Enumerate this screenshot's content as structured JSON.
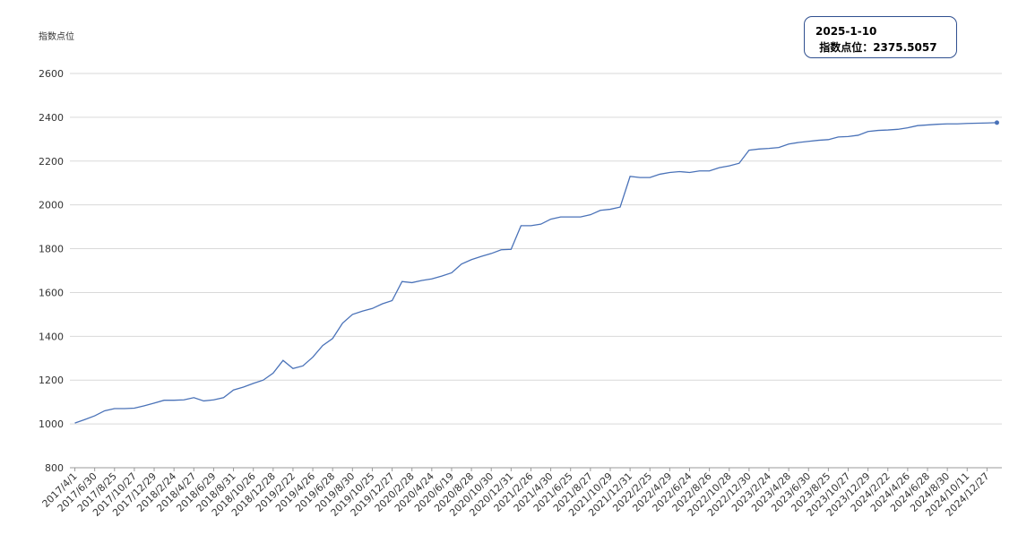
{
  "chart_data": {
    "type": "line",
    "y_label": "指数点位",
    "categories": [
      "2017/4/1",
      null,
      "2017/6/30",
      null,
      "2017/8/25",
      null,
      "2017/10/27",
      null,
      "2017/12/29",
      null,
      "2018/2/24",
      null,
      "2018/4/27",
      null,
      "2018/6/29",
      null,
      "2018/8/31",
      null,
      "2018/10/26",
      null,
      "2018/12/28",
      null,
      "2019/2/22",
      null,
      "2019/4/26",
      null,
      "2019/6/28",
      null,
      "2019/8/30",
      null,
      "2019/10/25",
      null,
      "2019/12/27",
      null,
      "2020/2/28",
      null,
      "2020/4/24",
      null,
      "2020/6/19",
      null,
      "2020/8/28",
      null,
      "2020/10/30",
      null,
      "2020/12/31",
      null,
      "2021/2/26",
      null,
      "2021/4/30",
      null,
      "2021/6/25",
      null,
      "2021/8/27",
      null,
      "2021/10/29",
      null,
      "2021/12/31",
      null,
      "2022/2/25",
      null,
      "2022/4/29",
      null,
      "2022/6/24",
      null,
      "2022/8/26",
      null,
      "2022/10/28",
      null,
      "2022/12/30",
      null,
      "2023/2/24",
      null,
      "2023/4/28",
      null,
      "2023/6/30",
      null,
      "2023/8/25",
      null,
      "2023/10/27",
      null,
      "2023/12/29",
      null,
      "2024/2/22",
      null,
      "2024/4/26",
      null,
      "2024/6/28",
      null,
      "2024/8/30",
      null,
      "2024/10/11",
      null,
      "2024/12/27",
      null
    ],
    "series": [
      {
        "color": "#4a72b8",
        "values": [
          1004,
          1020,
          1037,
          1060,
          1070,
          1070,
          1072,
          1083,
          1095,
          1108,
          1108,
          1110,
          1120,
          1105,
          1110,
          1120,
          1155,
          1168,
          1185,
          1200,
          1232,
          1290,
          1253,
          1265,
          1305,
          1358,
          1390,
          1460,
          1500,
          1515,
          1527,
          1548,
          1563,
          1650,
          1645,
          1655,
          1662,
          1675,
          1690,
          1730,
          1750,
          1765,
          1778,
          1795,
          1797,
          1905,
          1905,
          1912,
          1935,
          1945,
          1945,
          1945,
          1955,
          1975,
          1980,
          1990,
          2130,
          2125,
          2125,
          2140,
          2148,
          2152,
          2148,
          2155,
          2155,
          2170,
          2178,
          2190,
          2250,
          2255,
          2258,
          2262,
          2278,
          2285,
          2290,
          2295,
          2298,
          2310,
          2312,
          2318,
          2335,
          2340,
          2342,
          2345,
          2352,
          2362,
          2365,
          2368,
          2370,
          2370,
          2372,
          2373,
          2374,
          2375.5057
        ]
      }
    ],
    "ylim": [
      800,
      2600
    ],
    "yticks": [
      800,
      1000,
      1200,
      1400,
      1600,
      1800,
      2000,
      2200,
      2400,
      2600
    ],
    "grid": true,
    "tooltip": {
      "title": "2025-1-10",
      "label": "指数点位："
    }
  }
}
